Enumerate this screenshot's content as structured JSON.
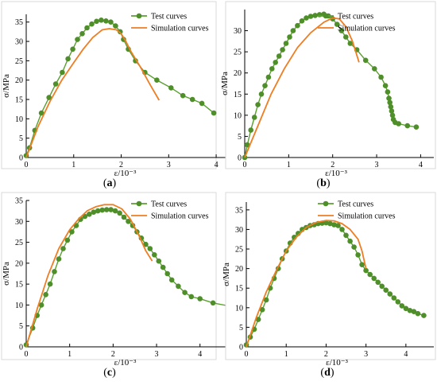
{
  "colors": {
    "test": "#5b9f32",
    "test_marker": "#4f8f2a",
    "simulation": "#ef7d22",
    "frame": "#d9d9d9"
  },
  "chart_data": [
    {
      "type": "line",
      "caption": "a",
      "xlabel": "ε/10⁻³",
      "ylabel": "σ/MPa",
      "xlim": [
        0,
        4.3
      ],
      "ylim": [
        0,
        37
      ],
      "xticks": [
        0,
        1,
        2,
        3,
        4
      ],
      "yticks": [
        0,
        5,
        10,
        15,
        20,
        25,
        30,
        35
      ],
      "legend": "top-right",
      "series": [
        {
          "name": "Test curves",
          "markers": true,
          "x": [
            0.0,
            0.07,
            0.18,
            0.32,
            0.48,
            0.62,
            0.76,
            0.88,
            0.98,
            1.08,
            1.18,
            1.28,
            1.38,
            1.48,
            1.58,
            1.68,
            1.78,
            1.88,
            1.98,
            2.05,
            2.15,
            2.3,
            2.5,
            2.75,
            3.05,
            3.3,
            3.5,
            3.7,
            3.95
          ],
          "y": [
            0.5,
            2.5,
            7.0,
            11.5,
            15.5,
            19.0,
            22.0,
            25.5,
            28.0,
            30.5,
            32.0,
            33.5,
            34.5,
            35.2,
            35.5,
            35.3,
            35.0,
            34.0,
            32.5,
            30.5,
            28.0,
            25.0,
            22.0,
            20.0,
            18.0,
            16.0,
            15.0,
            14.0,
            11.5
          ]
        },
        {
          "name": "Simulation curves",
          "markers": false,
          "x": [
            0.0,
            0.25,
            0.5,
            0.75,
            1.0,
            1.2,
            1.4,
            1.6,
            1.75,
            1.9,
            2.0,
            2.1,
            2.2,
            2.4,
            2.6,
            2.8
          ],
          "y": [
            0.0,
            8.0,
            14.5,
            20.0,
            24.5,
            28.0,
            31.0,
            33.0,
            33.3,
            33.0,
            32.0,
            30.0,
            27.5,
            23.5,
            19.0,
            14.8
          ]
        }
      ]
    },
    {
      "type": "line",
      "caption": "b",
      "xlabel": "ε/10⁻³",
      "ylabel": "σ/MPa",
      "xlim": [
        0,
        4.3
      ],
      "ylim": [
        0,
        35
      ],
      "xticks": [
        0,
        1,
        2,
        3,
        4
      ],
      "yticks": [
        0,
        5,
        10,
        15,
        20,
        25,
        30
      ],
      "legend": "top-right",
      "series": [
        {
          "name": "Test curves",
          "markers": true,
          "x": [
            0.0,
            0.06,
            0.14,
            0.22,
            0.3,
            0.38,
            0.46,
            0.54,
            0.62,
            0.7,
            0.78,
            0.86,
            0.94,
            1.02,
            1.1,
            1.2,
            1.3,
            1.4,
            1.5,
            1.6,
            1.7,
            1.8,
            1.9,
            2.0,
            2.1,
            2.2,
            2.3,
            2.4,
            2.55,
            2.75,
            2.95,
            3.1,
            3.2,
            3.25,
            3.28,
            3.3,
            3.32,
            3.34,
            3.36,
            3.38,
            3.42,
            3.5,
            3.7,
            3.9
          ],
          "y": [
            0.0,
            3.0,
            6.5,
            9.5,
            12.5,
            15.0,
            17.0,
            19.0,
            21.0,
            22.5,
            24.0,
            25.5,
            27.0,
            28.5,
            30.0,
            31.2,
            32.3,
            33.0,
            33.4,
            33.6,
            33.8,
            33.9,
            33.5,
            32.8,
            31.5,
            30.0,
            28.5,
            27.0,
            25.5,
            23.0,
            21.0,
            19.0,
            17.0,
            15.5,
            14.0,
            13.0,
            12.0,
            11.0,
            10.0,
            9.0,
            8.3,
            8.0,
            7.5,
            7.2
          ]
        },
        {
          "name": "Simulation curves",
          "markers": false,
          "x": [
            0.0,
            0.3,
            0.6,
            0.9,
            1.2,
            1.5,
            1.8,
            2.0,
            2.15,
            2.3,
            2.45,
            2.6
          ],
          "y": [
            0.0,
            7.5,
            15.0,
            21.0,
            26.0,
            29.5,
            32.0,
            33.0,
            32.8,
            31.0,
            27.5,
            22.5
          ]
        }
      ]
    },
    {
      "type": "line",
      "caption": "c",
      "xlabel": "ε/10⁻³",
      "ylabel": "σ/MPa",
      "xlim": [
        0,
        4.7
      ],
      "ylim": [
        0,
        35
      ],
      "xticks": [
        0,
        1,
        2,
        3,
        4
      ],
      "yticks": [
        0,
        5,
        10,
        15,
        20,
        25,
        30,
        35
      ],
      "legend": "top-right",
      "series": [
        {
          "name": "Test curves",
          "markers": true,
          "x": [
            0.0,
            0.15,
            0.25,
            0.35,
            0.45,
            0.55,
            0.65,
            0.75,
            0.85,
            0.95,
            1.05,
            1.15,
            1.25,
            1.35,
            1.45,
            1.55,
            1.65,
            1.75,
            1.85,
            1.95,
            2.05,
            2.15,
            2.25,
            2.35,
            2.45,
            2.55,
            2.65,
            2.75,
            2.85,
            2.95,
            3.05,
            3.15,
            3.25,
            3.35,
            3.5,
            3.65,
            3.8,
            4.0,
            4.3,
            4.7
          ],
          "y": [
            0.5,
            4.5,
            7.5,
            10.0,
            12.5,
            15.0,
            18.0,
            21.0,
            23.5,
            25.5,
            27.5,
            29.0,
            30.5,
            31.2,
            31.7,
            32.2,
            32.5,
            32.7,
            32.8,
            32.8,
            32.5,
            32.0,
            31.0,
            30.0,
            29.0,
            27.5,
            26.0,
            24.5,
            23.5,
            22.0,
            20.5,
            19.0,
            17.5,
            16.0,
            14.5,
            13.0,
            12.0,
            11.5,
            10.5,
            9.7
          ]
        },
        {
          "name": "Simulation curves",
          "markers": false,
          "x": [
            0.0,
            0.25,
            0.5,
            0.75,
            1.0,
            1.2,
            1.4,
            1.6,
            1.8,
            2.0,
            2.2,
            2.4,
            2.6,
            2.75,
            2.9
          ],
          "y": [
            0.0,
            9.0,
            17.0,
            23.5,
            28.0,
            30.5,
            32.5,
            33.5,
            34.0,
            34.0,
            33.0,
            30.5,
            26.5,
            23.0,
            20.5
          ]
        }
      ]
    },
    {
      "type": "line",
      "caption": "d",
      "xlabel": "ε/10⁻³",
      "ylabel": "σ/MPa",
      "xlim": [
        0,
        4.7
      ],
      "ylim": [
        0,
        37
      ],
      "xticks": [
        0,
        1,
        2,
        3,
        4
      ],
      "yticks": [
        0,
        5,
        10,
        15,
        20,
        25,
        30,
        35
      ],
      "legend": "top-right",
      "series": [
        {
          "name": "Test curves",
          "markers": true,
          "x": [
            0.0,
            0.1,
            0.2,
            0.3,
            0.4,
            0.5,
            0.6,
            0.7,
            0.8,
            0.9,
            1.0,
            1.1,
            1.2,
            1.3,
            1.4,
            1.5,
            1.6,
            1.7,
            1.8,
            1.9,
            2.0,
            2.1,
            2.2,
            2.3,
            2.4,
            2.5,
            2.6,
            2.7,
            2.8,
            2.9,
            3.0,
            3.1,
            3.2,
            3.3,
            3.4,
            3.5,
            3.6,
            3.7,
            3.8,
            3.9,
            4.0,
            4.1,
            4.2,
            4.3,
            4.45
          ],
          "y": [
            0.5,
            2.5,
            4.5,
            7.0,
            9.5,
            12.0,
            15.0,
            17.5,
            20.0,
            22.5,
            24.5,
            26.5,
            28.0,
            29.0,
            30.0,
            30.5,
            31.0,
            31.2,
            31.5,
            31.6,
            31.7,
            31.5,
            31.2,
            31.0,
            30.0,
            28.5,
            27.0,
            25.5,
            23.5,
            21.0,
            19.5,
            18.5,
            17.5,
            16.5,
            15.5,
            14.5,
            13.5,
            12.5,
            11.5,
            10.5,
            9.8,
            9.3,
            9.0,
            8.5,
            8.0
          ]
        },
        {
          "name": "Simulation curves",
          "markers": false,
          "x": [
            0.0,
            0.25,
            0.5,
            0.75,
            1.0,
            1.25,
            1.5,
            1.75,
            2.0,
            2.2,
            2.4,
            2.6,
            2.8,
            2.9,
            3.0
          ],
          "y": [
            0.0,
            7.5,
            14.0,
            19.5,
            24.5,
            28.0,
            30.5,
            31.8,
            32.3,
            32.2,
            31.5,
            30.0,
            27.5,
            24.5,
            20.0
          ]
        }
      ]
    }
  ]
}
